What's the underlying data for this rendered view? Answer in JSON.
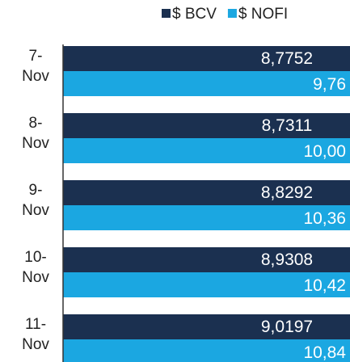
{
  "chart_data": {
    "type": "bar",
    "orientation": "horizontal",
    "categories": [
      [
        "7-",
        "Nov"
      ],
      [
        "8-",
        "Nov"
      ],
      [
        "9-",
        "Nov"
      ],
      [
        "10-",
        "Nov"
      ],
      [
        "11-",
        "Nov"
      ]
    ],
    "series": [
      {
        "name": "$ BCV",
        "color": "#1b3050",
        "values": [
          8.7752,
          8.7311,
          8.8292,
          8.9308,
          9.0197
        ],
        "value_labels": [
          "8,7752",
          "8,7311",
          "8,8292",
          "8,9308",
          "9,0197"
        ]
      },
      {
        "name": "$ NOFI",
        "color": "#1ba7e1",
        "values": [
          9.76,
          10.0,
          10.36,
          10.42,
          10.84
        ],
        "value_labels": [
          "9,76",
          "10,00",
          "10,36",
          "10,42",
          "10,84"
        ]
      }
    ],
    "xlim": [
      0,
      8.7
    ]
  }
}
